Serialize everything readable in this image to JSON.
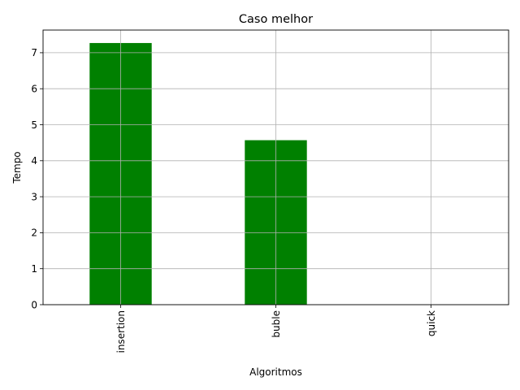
{
  "chart_data": {
    "type": "bar",
    "title": "Caso melhor",
    "xlabel": "Algoritmos",
    "ylabel": "Tempo",
    "categories": [
      "insertion",
      "buble",
      "quick"
    ],
    "values": [
      7.27,
      4.57,
      0.0
    ],
    "ylim": [
      0,
      7.63
    ],
    "yticks": [
      0,
      1,
      2,
      3,
      4,
      5,
      6,
      7
    ],
    "grid": true,
    "bar_color": "#008000",
    "grid_color": "#b0b0b0",
    "xtick_rotation": "vertical"
  }
}
